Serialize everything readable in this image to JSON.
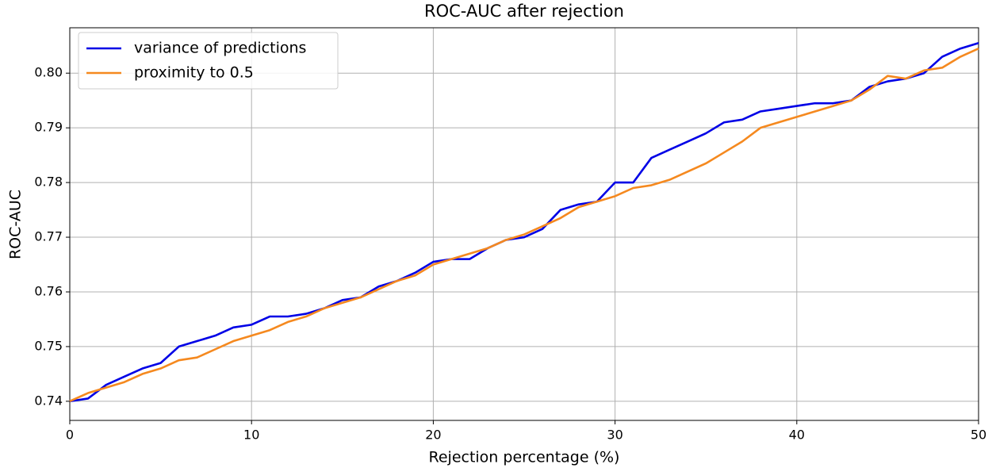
{
  "chart_data": {
    "type": "line",
    "title": "ROC-AUC after rejection",
    "x_label": "Rejection percentage (%)",
    "y_label": "ROC-AUC",
    "x": [
      0,
      1,
      2,
      3,
      4,
      5,
      6,
      7,
      8,
      9,
      10,
      11,
      12,
      13,
      14,
      15,
      16,
      17,
      18,
      19,
      20,
      21,
      22,
      23,
      24,
      25,
      26,
      27,
      28,
      29,
      30,
      31,
      32,
      33,
      34,
      35,
      36,
      37,
      38,
      39,
      40,
      41,
      42,
      43,
      44,
      45,
      46,
      47,
      48,
      49,
      50
    ],
    "series": [
      {
        "name": "variance of predictions",
        "color": "#0000e6",
        "values": [
          0.74,
          0.7405,
          0.743,
          0.7445,
          0.746,
          0.747,
          0.75,
          0.751,
          0.752,
          0.7535,
          0.754,
          0.7555,
          0.7555,
          0.756,
          0.757,
          0.7585,
          0.759,
          0.761,
          0.762,
          0.7635,
          0.7655,
          0.766,
          0.766,
          0.768,
          0.7695,
          0.77,
          0.7715,
          0.775,
          0.776,
          0.7765,
          0.78,
          0.78,
          0.7845,
          0.786,
          0.7875,
          0.789,
          0.791,
          0.7915,
          0.793,
          0.7935,
          0.794,
          0.7945,
          0.7945,
          0.795,
          0.7975,
          0.7985,
          0.799,
          0.8,
          0.803,
          0.8045,
          0.8055
        ]
      },
      {
        "name": "proximity to 0.5",
        "color": "#f5891f",
        "values": [
          0.74,
          0.7415,
          0.7425,
          0.7435,
          0.745,
          0.746,
          0.7475,
          0.748,
          0.7495,
          0.751,
          0.752,
          0.753,
          0.7545,
          0.7555,
          0.757,
          0.758,
          0.759,
          0.7605,
          0.762,
          0.763,
          0.765,
          0.766,
          0.767,
          0.768,
          0.7695,
          0.7705,
          0.772,
          0.7735,
          0.7755,
          0.7765,
          0.7775,
          0.779,
          0.7795,
          0.7805,
          0.782,
          0.7835,
          0.7855,
          0.7875,
          0.79,
          0.791,
          0.792,
          0.793,
          0.794,
          0.795,
          0.797,
          0.7995,
          0.799,
          0.8005,
          0.801,
          0.803,
          0.8045
        ]
      }
    ],
    "xlim": [
      0,
      50
    ],
    "xticks": [
      0,
      10,
      20,
      30,
      40,
      50
    ],
    "ylim": [
      0.7365,
      0.8083
    ],
    "yticks": [
      0.74,
      0.75,
      0.76,
      0.77,
      0.78,
      0.79,
      {
        "value": 0.8,
        "label": "0.80"
      }
    ],
    "grid": true,
    "legend_loc": "upper left"
  }
}
